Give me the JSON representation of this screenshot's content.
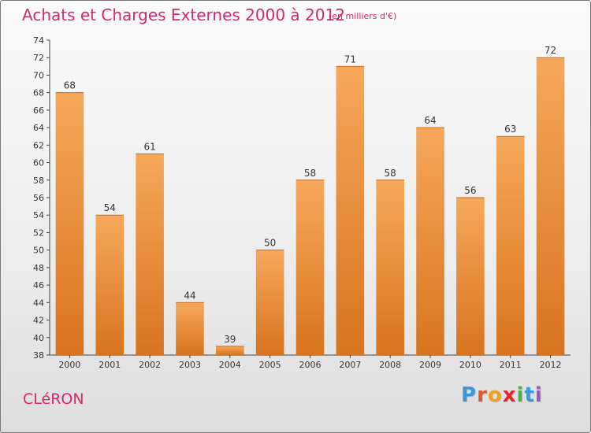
{
  "title": "Achats et Charges Externes 2000 à 2012",
  "unit_note": "(en milliers d'€)",
  "commune": "CLéRON",
  "logo": {
    "letters": [
      "P",
      "r",
      "o",
      "x",
      "i",
      "t",
      "i"
    ],
    "colors": [
      "#3a9ad9",
      "#e05a2a",
      "#f0a01e",
      "#e0282a",
      "#4bb34b",
      "#3a9ad9",
      "#9b59b6"
    ]
  },
  "colors": {
    "accent": "#d4286c",
    "bar_top": "#f6a85a",
    "bar_bottom": "#d8741f"
  },
  "chart_data": {
    "type": "bar",
    "categories": [
      "2000",
      "2001",
      "2002",
      "2003",
      "2004",
      "2005",
      "2006",
      "2007",
      "2008",
      "2009",
      "2010",
      "2011",
      "2012"
    ],
    "values": [
      68,
      54,
      61,
      44,
      39,
      50,
      58,
      71,
      58,
      64,
      56,
      63,
      72
    ],
    "ylim": [
      38,
      74
    ],
    "yticks": [
      38,
      40,
      42,
      44,
      46,
      48,
      50,
      52,
      54,
      56,
      58,
      60,
      62,
      64,
      66,
      68,
      70,
      72,
      74
    ],
    "grid": false,
    "legend": "none",
    "xlabel": "",
    "ylabel": ""
  }
}
